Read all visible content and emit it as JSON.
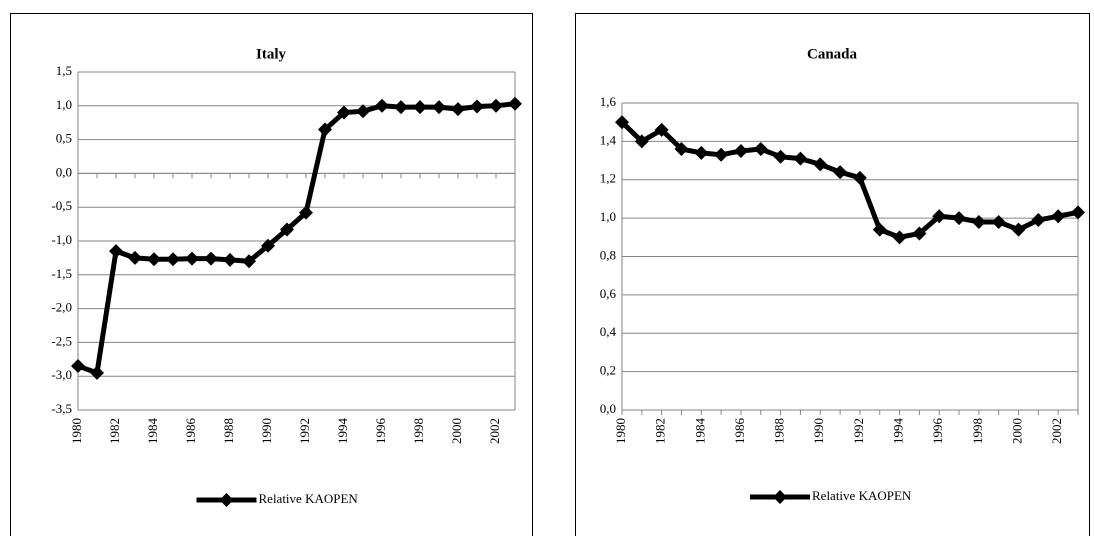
{
  "chart_data": [
    {
      "type": "line",
      "title": "Italy",
      "categories": [
        "1980",
        null,
        "1982",
        null,
        "1984",
        null,
        "1986",
        null,
        "1988",
        null,
        "1990",
        null,
        "1992",
        null,
        "1994",
        null,
        "1996",
        null,
        "1998",
        null,
        "2000",
        null,
        "2002",
        null
      ],
      "series": [
        {
          "name": "Relative KAOPEN",
          "color": "#000000",
          "values": [
            -2.85,
            -2.95,
            -1.15,
            -1.25,
            -1.27,
            -1.27,
            -1.26,
            -1.26,
            -1.28,
            -1.3,
            -1.07,
            -0.83,
            -0.58,
            0.65,
            0.9,
            0.92,
            1.0,
            0.98,
            0.98,
            0.98,
            0.95,
            0.99,
            1.0,
            1.03
          ]
        }
      ],
      "ylim": [
        -3.5,
        1.5
      ],
      "yticks": [
        {
          "value": -3.5,
          "label": "-3,5"
        },
        {
          "value": -3,
          "label": "-3,0"
        },
        {
          "value": -2.5,
          "label": "-2,5"
        },
        {
          "value": -2,
          "label": "-2,0"
        },
        {
          "value": -1.5,
          "label": "-1,5"
        },
        {
          "value": -1,
          "label": "-1,0"
        },
        {
          "value": -0.5,
          "label": "-0,5"
        },
        {
          "value": 0,
          "label": "0,0"
        },
        {
          "value": 0.5,
          "label": "0,5"
        },
        {
          "value": 1,
          "label": "1,0"
        },
        {
          "value": 1.5,
          "label": "1,5"
        }
      ],
      "grid": true,
      "legend": "bottom"
    },
    {
      "type": "line",
      "title": "Canada",
      "categories": [
        "1980",
        null,
        "1982",
        null,
        "1984",
        null,
        "1986",
        null,
        "1988",
        null,
        "1990",
        null,
        "1992",
        null,
        "1994",
        null,
        "1996",
        null,
        "1998",
        null,
        "2000",
        null,
        "2002",
        null
      ],
      "series": [
        {
          "name": "Relative KAOPEN",
          "color": "#000000",
          "values": [
            1.5,
            1.4,
            1.46,
            1.36,
            1.34,
            1.33,
            1.35,
            1.36,
            1.32,
            1.31,
            1.28,
            1.24,
            1.21,
            0.94,
            0.9,
            0.92,
            1.01,
            1.0,
            0.98,
            0.98,
            0.94,
            0.99,
            1.01,
            1.03
          ]
        }
      ],
      "ylim": [
        0,
        1.6
      ],
      "yticks": [
        {
          "value": 0,
          "label": "0,0"
        },
        {
          "value": 0.2,
          "label": "0,2"
        },
        {
          "value": 0.4,
          "label": "0,4"
        },
        {
          "value": 0.6,
          "label": "0,6"
        },
        {
          "value": 0.8,
          "label": "0,8"
        },
        {
          "value": 1,
          "label": "1,0"
        },
        {
          "value": 1.2,
          "label": "1,2"
        },
        {
          "value": 1.4,
          "label": "1,4"
        },
        {
          "value": 1.6,
          "label": "1,6"
        }
      ],
      "grid": true,
      "legend": "bottom"
    }
  ]
}
